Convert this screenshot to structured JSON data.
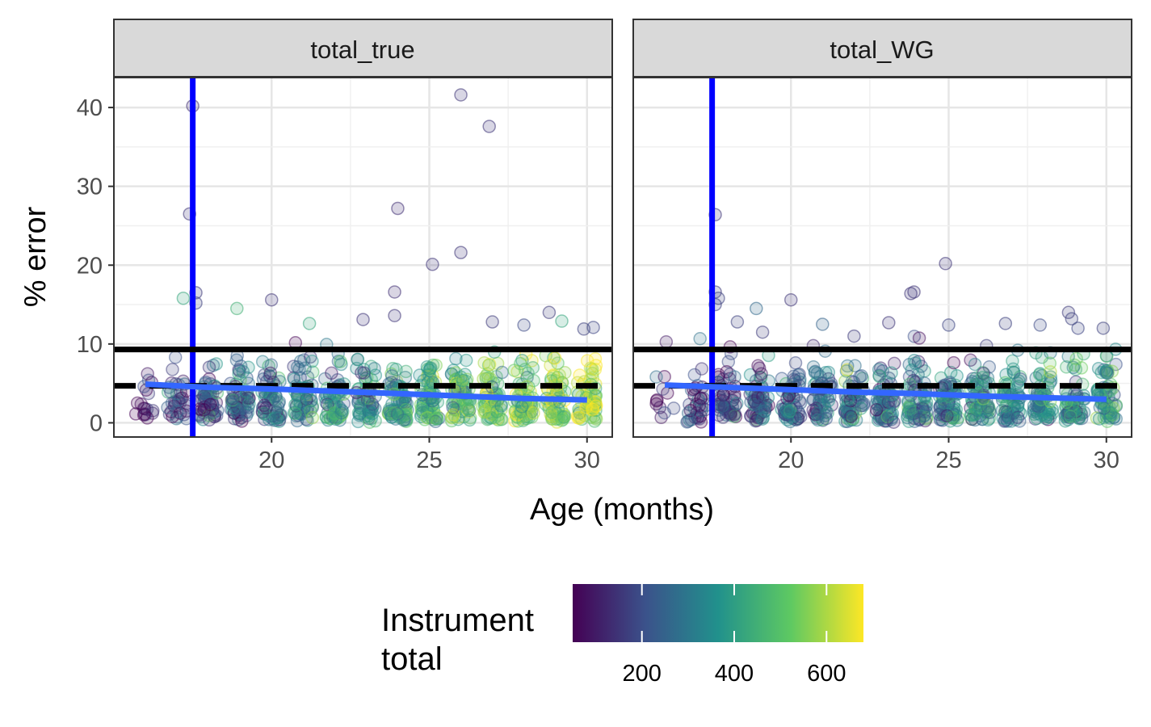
{
  "chart_data": {
    "type": "scatter",
    "xlabel": "Age (months)",
    "ylabel": "% error",
    "xlim": [
      15.0,
      30.8
    ],
    "ylim": [
      -1.8,
      43.8
    ],
    "x_ticks": [
      20,
      25,
      30
    ],
    "y_ticks": [
      0,
      10,
      20,
      30,
      40
    ],
    "grid": true,
    "legend_position": "bottom",
    "colors": {
      "vertical_line": "#0000ff",
      "trend_line": "#3366ff",
      "reference_lines": "#000000",
      "strip_background": "#d9d9d9",
      "point_alpha": 0.2
    },
    "reference_lines": {
      "vertical_x": 17.5,
      "solid_h_y": 9.3,
      "dashed_h_y": 4.7
    },
    "legend": {
      "title": "Instrument total",
      "min": 50,
      "max": 680,
      "ticks": [
        200,
        400,
        600
      ]
    },
    "panels": [
      {
        "title": "total_true",
        "trend": [
          [
            16,
            4.9
          ],
          [
            18,
            4.5
          ],
          [
            20,
            4.3
          ],
          [
            22,
            4.0
          ],
          [
            24,
            3.7
          ],
          [
            26,
            3.4
          ],
          [
            28,
            3.1
          ],
          [
            30,
            2.9
          ]
        ],
        "highlight_points": [
          {
            "x": 17.5,
            "y": 40.2,
            "c": 140
          },
          {
            "x": 17.4,
            "y": 26.5,
            "c": 150
          },
          {
            "x": 17.6,
            "y": 16.5,
            "c": 160
          },
          {
            "x": 17.2,
            "y": 15.8,
            "c": 420
          },
          {
            "x": 17.6,
            "y": 15.2,
            "c": 170
          },
          {
            "x": 18.9,
            "y": 14.5,
            "c": 450
          },
          {
            "x": 20.0,
            "y": 15.6,
            "c": 150
          },
          {
            "x": 21.2,
            "y": 12.6,
            "c": 420
          },
          {
            "x": 22.9,
            "y": 13.1,
            "c": 150
          },
          {
            "x": 23.9,
            "y": 16.6,
            "c": 140
          },
          {
            "x": 24.0,
            "y": 27.2,
            "c": 140
          },
          {
            "x": 23.9,
            "y": 13.6,
            "c": 150
          },
          {
            "x": 25.1,
            "y": 20.1,
            "c": 150
          },
          {
            "x": 26.0,
            "y": 21.6,
            "c": 150
          },
          {
            "x": 26.0,
            "y": 41.6,
            "c": 150
          },
          {
            "x": 26.9,
            "y": 37.6,
            "c": 150
          },
          {
            "x": 27.0,
            "y": 12.8,
            "c": 160
          },
          {
            "x": 28.0,
            "y": 12.4,
            "c": 190
          },
          {
            "x": 28.8,
            "y": 14.0,
            "c": 160
          },
          {
            "x": 29.2,
            "y": 12.9,
            "c": 420
          },
          {
            "x": 29.9,
            "y": 11.9,
            "c": 170
          },
          {
            "x": 30.2,
            "y": 12.1,
            "c": 180
          }
        ],
        "bulk_columns": [
          {
            "x": 16,
            "n": 18,
            "cmean": 120
          },
          {
            "x": 17,
            "n": 35,
            "cmean": 140
          },
          {
            "x": 18,
            "n": 55,
            "cmean": 190
          },
          {
            "x": 19,
            "n": 60,
            "cmean": 230
          },
          {
            "x": 20,
            "n": 60,
            "cmean": 260
          },
          {
            "x": 21,
            "n": 60,
            "cmean": 300
          },
          {
            "x": 22,
            "n": 60,
            "cmean": 330
          },
          {
            "x": 23,
            "n": 60,
            "cmean": 370
          },
          {
            "x": 24,
            "n": 70,
            "cmean": 400
          },
          {
            "x": 25,
            "n": 70,
            "cmean": 430
          },
          {
            "x": 26,
            "n": 70,
            "cmean": 460
          },
          {
            "x": 27,
            "n": 65,
            "cmean": 490
          },
          {
            "x": 28,
            "n": 65,
            "cmean": 520
          },
          {
            "x": 29,
            "n": 65,
            "cmean": 550
          },
          {
            "x": 30,
            "n": 65,
            "cmean": 570
          }
        ]
      },
      {
        "title": "total_WG",
        "trend": [
          [
            16,
            4.8
          ],
          [
            18,
            4.5
          ],
          [
            20,
            4.2
          ],
          [
            22,
            3.9
          ],
          [
            24,
            3.7
          ],
          [
            26,
            3.4
          ],
          [
            28,
            3.2
          ],
          [
            30,
            3.0
          ]
        ],
        "highlight_points": [
          {
            "x": 17.6,
            "y": 26.4,
            "c": 150
          },
          {
            "x": 17.6,
            "y": 16.6,
            "c": 160
          },
          {
            "x": 17.7,
            "y": 15.8,
            "c": 170
          },
          {
            "x": 17.6,
            "y": 15.0,
            "c": 170
          },
          {
            "x": 18.3,
            "y": 12.8,
            "c": 170
          },
          {
            "x": 18.9,
            "y": 14.5,
            "c": 260
          },
          {
            "x": 19.1,
            "y": 11.5,
            "c": 160
          },
          {
            "x": 20.0,
            "y": 15.6,
            "c": 150
          },
          {
            "x": 21.0,
            "y": 12.5,
            "c": 250
          },
          {
            "x": 22.0,
            "y": 11.0,
            "c": 160
          },
          {
            "x": 23.1,
            "y": 12.7,
            "c": 150
          },
          {
            "x": 23.8,
            "y": 16.4,
            "c": 150
          },
          {
            "x": 23.9,
            "y": 16.6,
            "c": 150
          },
          {
            "x": 24.9,
            "y": 20.2,
            "c": 150
          },
          {
            "x": 25.0,
            "y": 12.4,
            "c": 180
          },
          {
            "x": 26.8,
            "y": 12.6,
            "c": 170
          },
          {
            "x": 27.9,
            "y": 12.4,
            "c": 190
          },
          {
            "x": 28.8,
            "y": 14.0,
            "c": 160
          },
          {
            "x": 28.9,
            "y": 13.2,
            "c": 170
          },
          {
            "x": 29.1,
            "y": 12.0,
            "c": 180
          },
          {
            "x": 29.9,
            "y": 12.0,
            "c": 170
          }
        ],
        "bulk_columns": [
          {
            "x": 16,
            "n": 12,
            "cmean": 120
          },
          {
            "x": 17,
            "n": 35,
            "cmean": 130
          },
          {
            "x": 18,
            "n": 55,
            "cmean": 170
          },
          {
            "x": 19,
            "n": 60,
            "cmean": 200
          },
          {
            "x": 20,
            "n": 60,
            "cmean": 220
          },
          {
            "x": 21,
            "n": 60,
            "cmean": 240
          },
          {
            "x": 22,
            "n": 60,
            "cmean": 260
          },
          {
            "x": 23,
            "n": 60,
            "cmean": 280
          },
          {
            "x": 24,
            "n": 70,
            "cmean": 300
          },
          {
            "x": 25,
            "n": 70,
            "cmean": 310
          },
          {
            "x": 26,
            "n": 70,
            "cmean": 330
          },
          {
            "x": 27,
            "n": 65,
            "cmean": 340
          },
          {
            "x": 28,
            "n": 65,
            "cmean": 360
          },
          {
            "x": 29,
            "n": 65,
            "cmean": 370
          },
          {
            "x": 30,
            "n": 65,
            "cmean": 380
          }
        ]
      }
    ]
  }
}
